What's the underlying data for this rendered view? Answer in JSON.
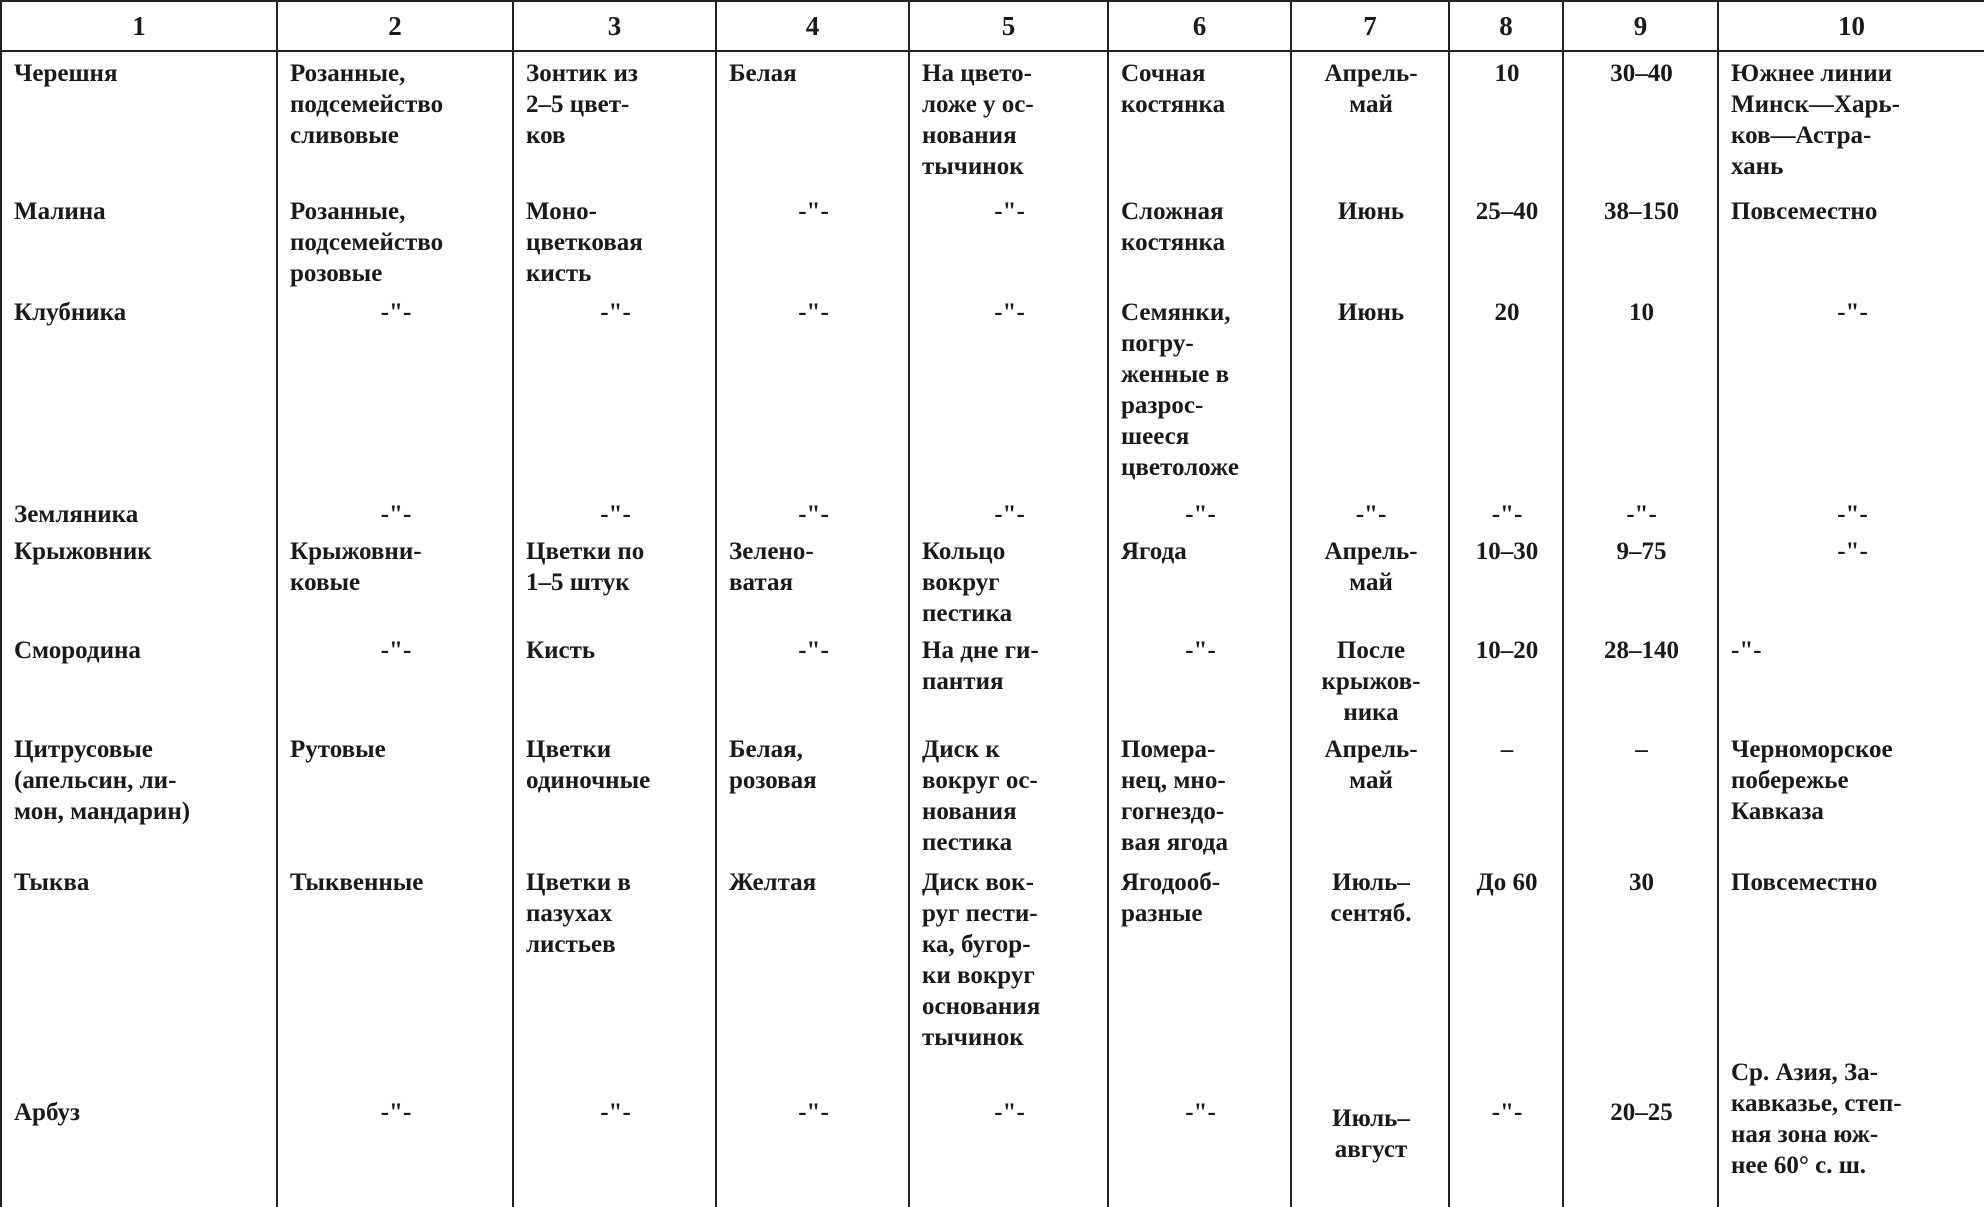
{
  "table": {
    "header": [
      "1",
      "2",
      "3",
      "4",
      "5",
      "6",
      "7",
      "8",
      "9",
      "10"
    ],
    "rows": [
      [
        "Черешня",
        "Розанные,\nподсемейство\nсливовые",
        "Зонтик из\n2–5 цвет-\nков",
        "Белая",
        "На цвето-\nложе у ос-\nнования\nтычинок",
        "Сочная\nкостянка",
        "Апрель-\nмай",
        "10",
        "30–40",
        "Южнее линии\nМинск—Харь-\nков—Астра-\nхань"
      ],
      [
        "Малина",
        "Розанные,\nподсемейство\nрозовые",
        "Моно-\nцветковая\nкисть",
        "-\"-",
        "-\"-",
        "Сложная\nкостянка",
        "Июнь",
        "25–40",
        "38–150",
        "Повсеместно"
      ],
      [
        "Клубника",
        "-\"-",
        "-\"-",
        "-\"-",
        "-\"-",
        "Семянки,\nпогру-\nженные в\nразрос-\nшееся\nцветоложе",
        "Июнь",
        "20",
        "10",
        "-\"-"
      ],
      [
        "Земляника",
        "-\"-",
        "-\"-",
        "-\"-",
        "-\"-",
        "-\"-",
        "-\"-",
        "-\"-",
        "-\"-",
        "-\"-"
      ],
      [
        "Крыжовник",
        "Крыжовни-\nковые",
        "Цветки по\n1–5 штук",
        "Зелено-\nватая",
        "Кольцо\nвокруг\nпестика",
        "Ягода",
        "Апрель-\nмай",
        "10–30",
        "9–75",
        "-\"-"
      ],
      [
        "Смородина",
        "-\"-",
        "Кисть",
        "-\"-",
        "На дне ги-\nпантия",
        "-\"-",
        "После\nкрыжов-\nника",
        "10–20",
        "28–140",
        "-\"-"
      ],
      [
        "Цитрусовые\n(апельсин, ли-\nмон, мандарин)",
        "Рутовые",
        "Цветки\nодиночные",
        "Белая,\nрозовая",
        "Диск к\nвокруг ос-\nнования\nпестика",
        "Помера-\nнец, мно-\nгогнездо-\nвая ягода",
        "Апрель-\nмай",
        "–",
        "–",
        "Черноморское\nпобережье\nКавказа"
      ],
      [
        "Тыква",
        "Тыквенные",
        "Цветки в\nпазухах\nлистьев",
        "Желтая",
        "Диск вок-\nруг пести-\nка, бугор-\nки вокруг\nоснования\nтычинок",
        "Ягодооб-\nразные",
        "Июль–\nсентяб.",
        "До 60",
        "30",
        "Повсеместно"
      ],
      [
        "Арбуз",
        "-\"-",
        "-\"-",
        "-\"-",
        "-\"-",
        "-\"-",
        "Июль–\nавгуст",
        "-\"-",
        "20–25",
        "Ср. Азия, За-\nкавказье, степ-\nная зона юж-\nнее 60° с. ш."
      ]
    ]
  }
}
